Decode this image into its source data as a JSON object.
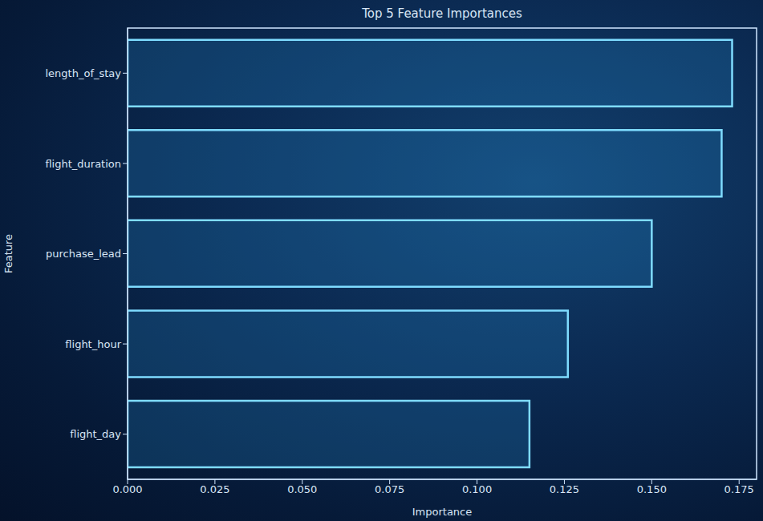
{
  "chart_data": {
    "type": "bar",
    "title": "Top 5 Feature Importances",
    "x_label": "Importance",
    "y_label": "Feature",
    "orientation": "horizontal",
    "categories": [
      "length_of_stay",
      "flight_duration",
      "purchase_lead",
      "flight_hour",
      "flight_day"
    ],
    "values": [
      0.173,
      0.17,
      0.15,
      0.126,
      0.115
    ],
    "color": "#7fdcff",
    "xlim": [
      0,
      0.18
    ],
    "xticks": [
      {
        "value": 0,
        "label": "0.000"
      },
      {
        "value": 0.025,
        "label": "0.025"
      },
      {
        "value": 0.05,
        "label": "0.050"
      },
      {
        "value": 0.075,
        "label": "0.075"
      },
      {
        "value": 0.1,
        "label": "0.100"
      },
      {
        "value": 0.125,
        "label": "0.125"
      },
      {
        "value": 0.15,
        "label": "0.150"
      },
      {
        "value": 0.175,
        "label": "0.175"
      }
    ],
    "grid": false
  }
}
